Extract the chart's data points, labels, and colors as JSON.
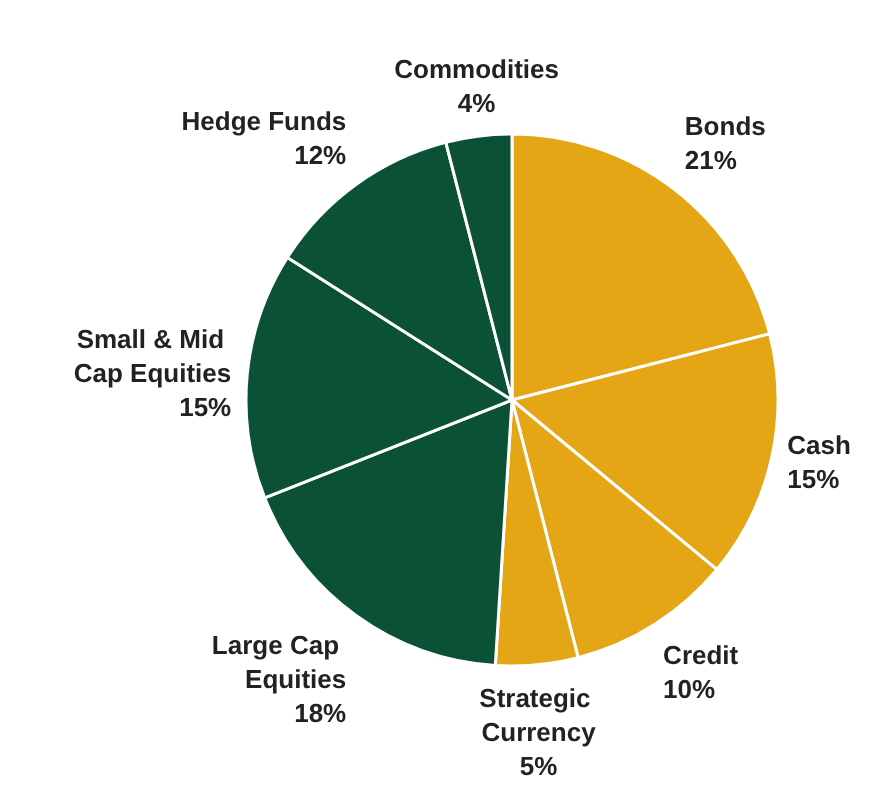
{
  "chart_data": {
    "type": "pie",
    "categories": [
      "Bonds",
      "Cash",
      "Credit",
      "Strategic Currency",
      "Large Cap Equities",
      "Small & Mid Cap Equities",
      "Hedge Funds",
      "Commodities"
    ],
    "values": [
      21,
      15,
      10,
      5,
      18,
      15,
      12,
      4
    ],
    "value_labels": [
      "21%",
      "15%",
      "10%",
      "5%",
      "18%",
      "15%",
      "12%",
      "4%"
    ],
    "colors": [
      "#e5a615",
      "#e5a615",
      "#e5a615",
      "#e5a615",
      "#0b5136",
      "#0b5136",
      "#0b5136",
      "#0b5136"
    ],
    "legend": false
  }
}
